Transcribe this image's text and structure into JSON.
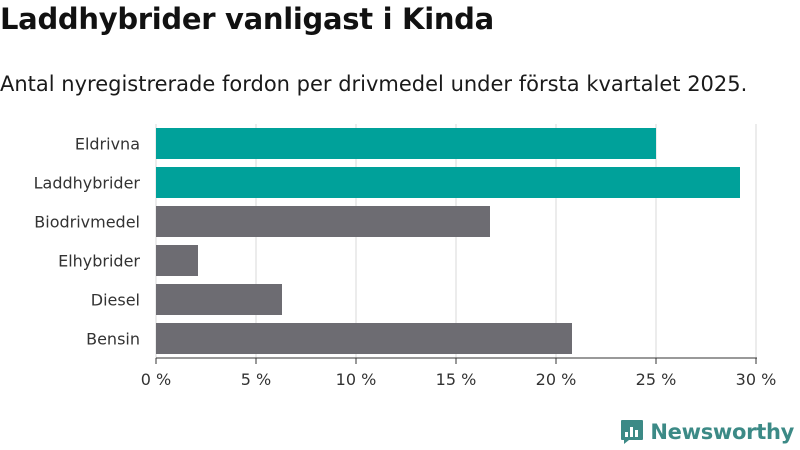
{
  "header": {
    "title": "Laddhybrider vanligast i Kinda",
    "subtitle": "Antal nyregistrerade fordon per drivmedel under första kvartalet 2025."
  },
  "brand": {
    "name": "Newsworthy",
    "icon": "newsworthy-logo-icon",
    "color": "#3c8a86"
  },
  "chart_data": {
    "type": "bar",
    "orientation": "horizontal",
    "title": "Laddhybrider vanligast i Kinda",
    "subtitle": "Antal nyregistrerade fordon per drivmedel under första kvartalet 2025.",
    "categories": [
      "Eldrivna",
      "Laddhybrider",
      "Biodrivmedel",
      "Elhybrider",
      "Diesel",
      "Bensin"
    ],
    "values": [
      25.0,
      29.2,
      16.7,
      2.1,
      6.3,
      20.8
    ],
    "colors": [
      "#00a19a",
      "#00a19a",
      "#6d6c72",
      "#6d6c72",
      "#6d6c72",
      "#6d6c72"
    ],
    "xlim": [
      0,
      30
    ],
    "xticks": [
      0,
      5,
      10,
      15,
      20,
      25,
      30
    ],
    "xtick_labels": [
      "0 %",
      "5 %",
      "10 %",
      "15 %",
      "20 %",
      "25 %",
      "30 %"
    ],
    "xlabel": "",
    "ylabel": "",
    "grid": true,
    "legend": "none"
  }
}
